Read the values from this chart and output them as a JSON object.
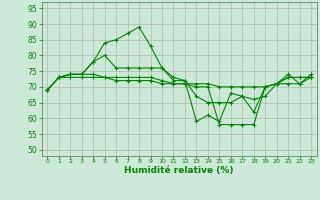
{
  "xlabel": "Humidité relative (%)",
  "bg_color": "#cce8d8",
  "grid_color": "#aabbaa",
  "line_color": "#008800",
  "xlim": [
    -0.5,
    23.5
  ],
  "ylim": [
    48,
    97
  ],
  "yticks": [
    50,
    55,
    60,
    65,
    70,
    75,
    80,
    85,
    90,
    95
  ],
  "xticks": [
    0,
    1,
    2,
    3,
    4,
    5,
    6,
    7,
    8,
    9,
    10,
    11,
    12,
    13,
    14,
    15,
    16,
    17,
    18,
    19,
    20,
    21,
    22,
    23
  ],
  "series": [
    [
      69,
      73,
      74,
      74,
      78,
      84,
      85,
      87,
      89,
      83,
      76,
      73,
      72,
      59,
      61,
      59,
      68,
      67,
      62,
      70,
      71,
      74,
      71,
      74
    ],
    [
      69,
      73,
      74,
      74,
      78,
      80,
      76,
      76,
      76,
      76,
      76,
      72,
      72,
      67,
      65,
      65,
      65,
      67,
      66,
      67,
      71,
      73,
      73,
      73
    ],
    [
      69,
      73,
      74,
      74,
      74,
      73,
      73,
      73,
      73,
      73,
      72,
      71,
      71,
      71,
      71,
      70,
      70,
      70,
      70,
      70,
      71,
      73,
      73,
      73
    ],
    [
      69,
      73,
      73,
      73,
      73,
      73,
      72,
      72,
      72,
      72,
      71,
      71,
      71,
      70,
      70,
      58,
      58,
      58,
      58,
      70,
      71,
      71,
      71,
      73
    ]
  ]
}
